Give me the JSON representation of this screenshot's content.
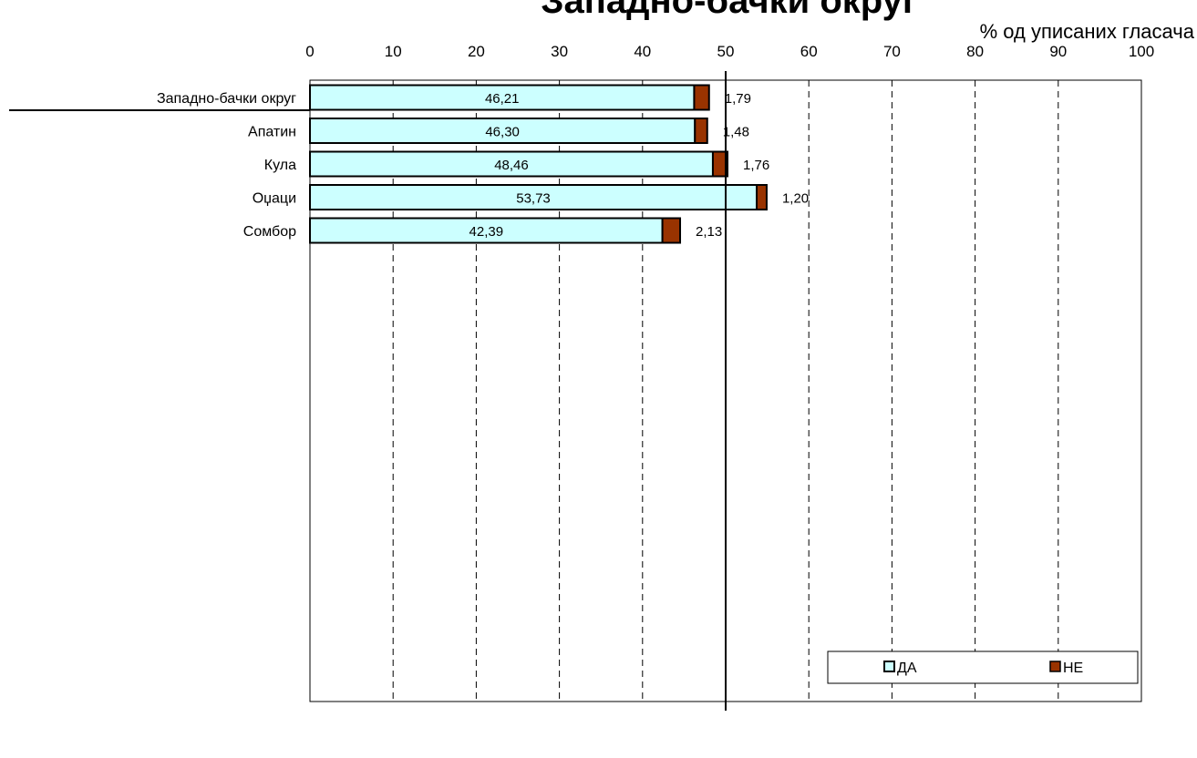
{
  "chart_data": {
    "type": "bar",
    "orientation": "horizontal",
    "stacked": true,
    "title": "Западно-бачки округ",
    "unit_label": "% од уписаних гласача",
    "categories": [
      "Западно-бачки округ",
      "Апатин",
      "Кула",
      "Оџаци",
      "Сомбор"
    ],
    "series": [
      {
        "name": "ДА",
        "color": "#ccffff",
        "values": [
          46.21,
          46.3,
          48.46,
          53.73,
          42.39
        ],
        "labels": [
          "46,21",
          "46,30",
          "48,46",
          "53,73",
          "42,39"
        ]
      },
      {
        "name": "НЕ",
        "color": "#993300",
        "values": [
          1.79,
          1.48,
          1.76,
          1.2,
          2.13
        ],
        "labels": [
          "1,79",
          "1,48",
          "1,76",
          "1,20",
          "2,13"
        ]
      }
    ],
    "xlim": [
      0,
      100
    ],
    "ticks": [
      "0",
      "10",
      "20",
      "30",
      "40",
      "50",
      "60",
      "70",
      "80",
      "90",
      "100"
    ],
    "reference_line": 50,
    "grid": "vertical dashed",
    "legend_position": "bottom-right"
  }
}
